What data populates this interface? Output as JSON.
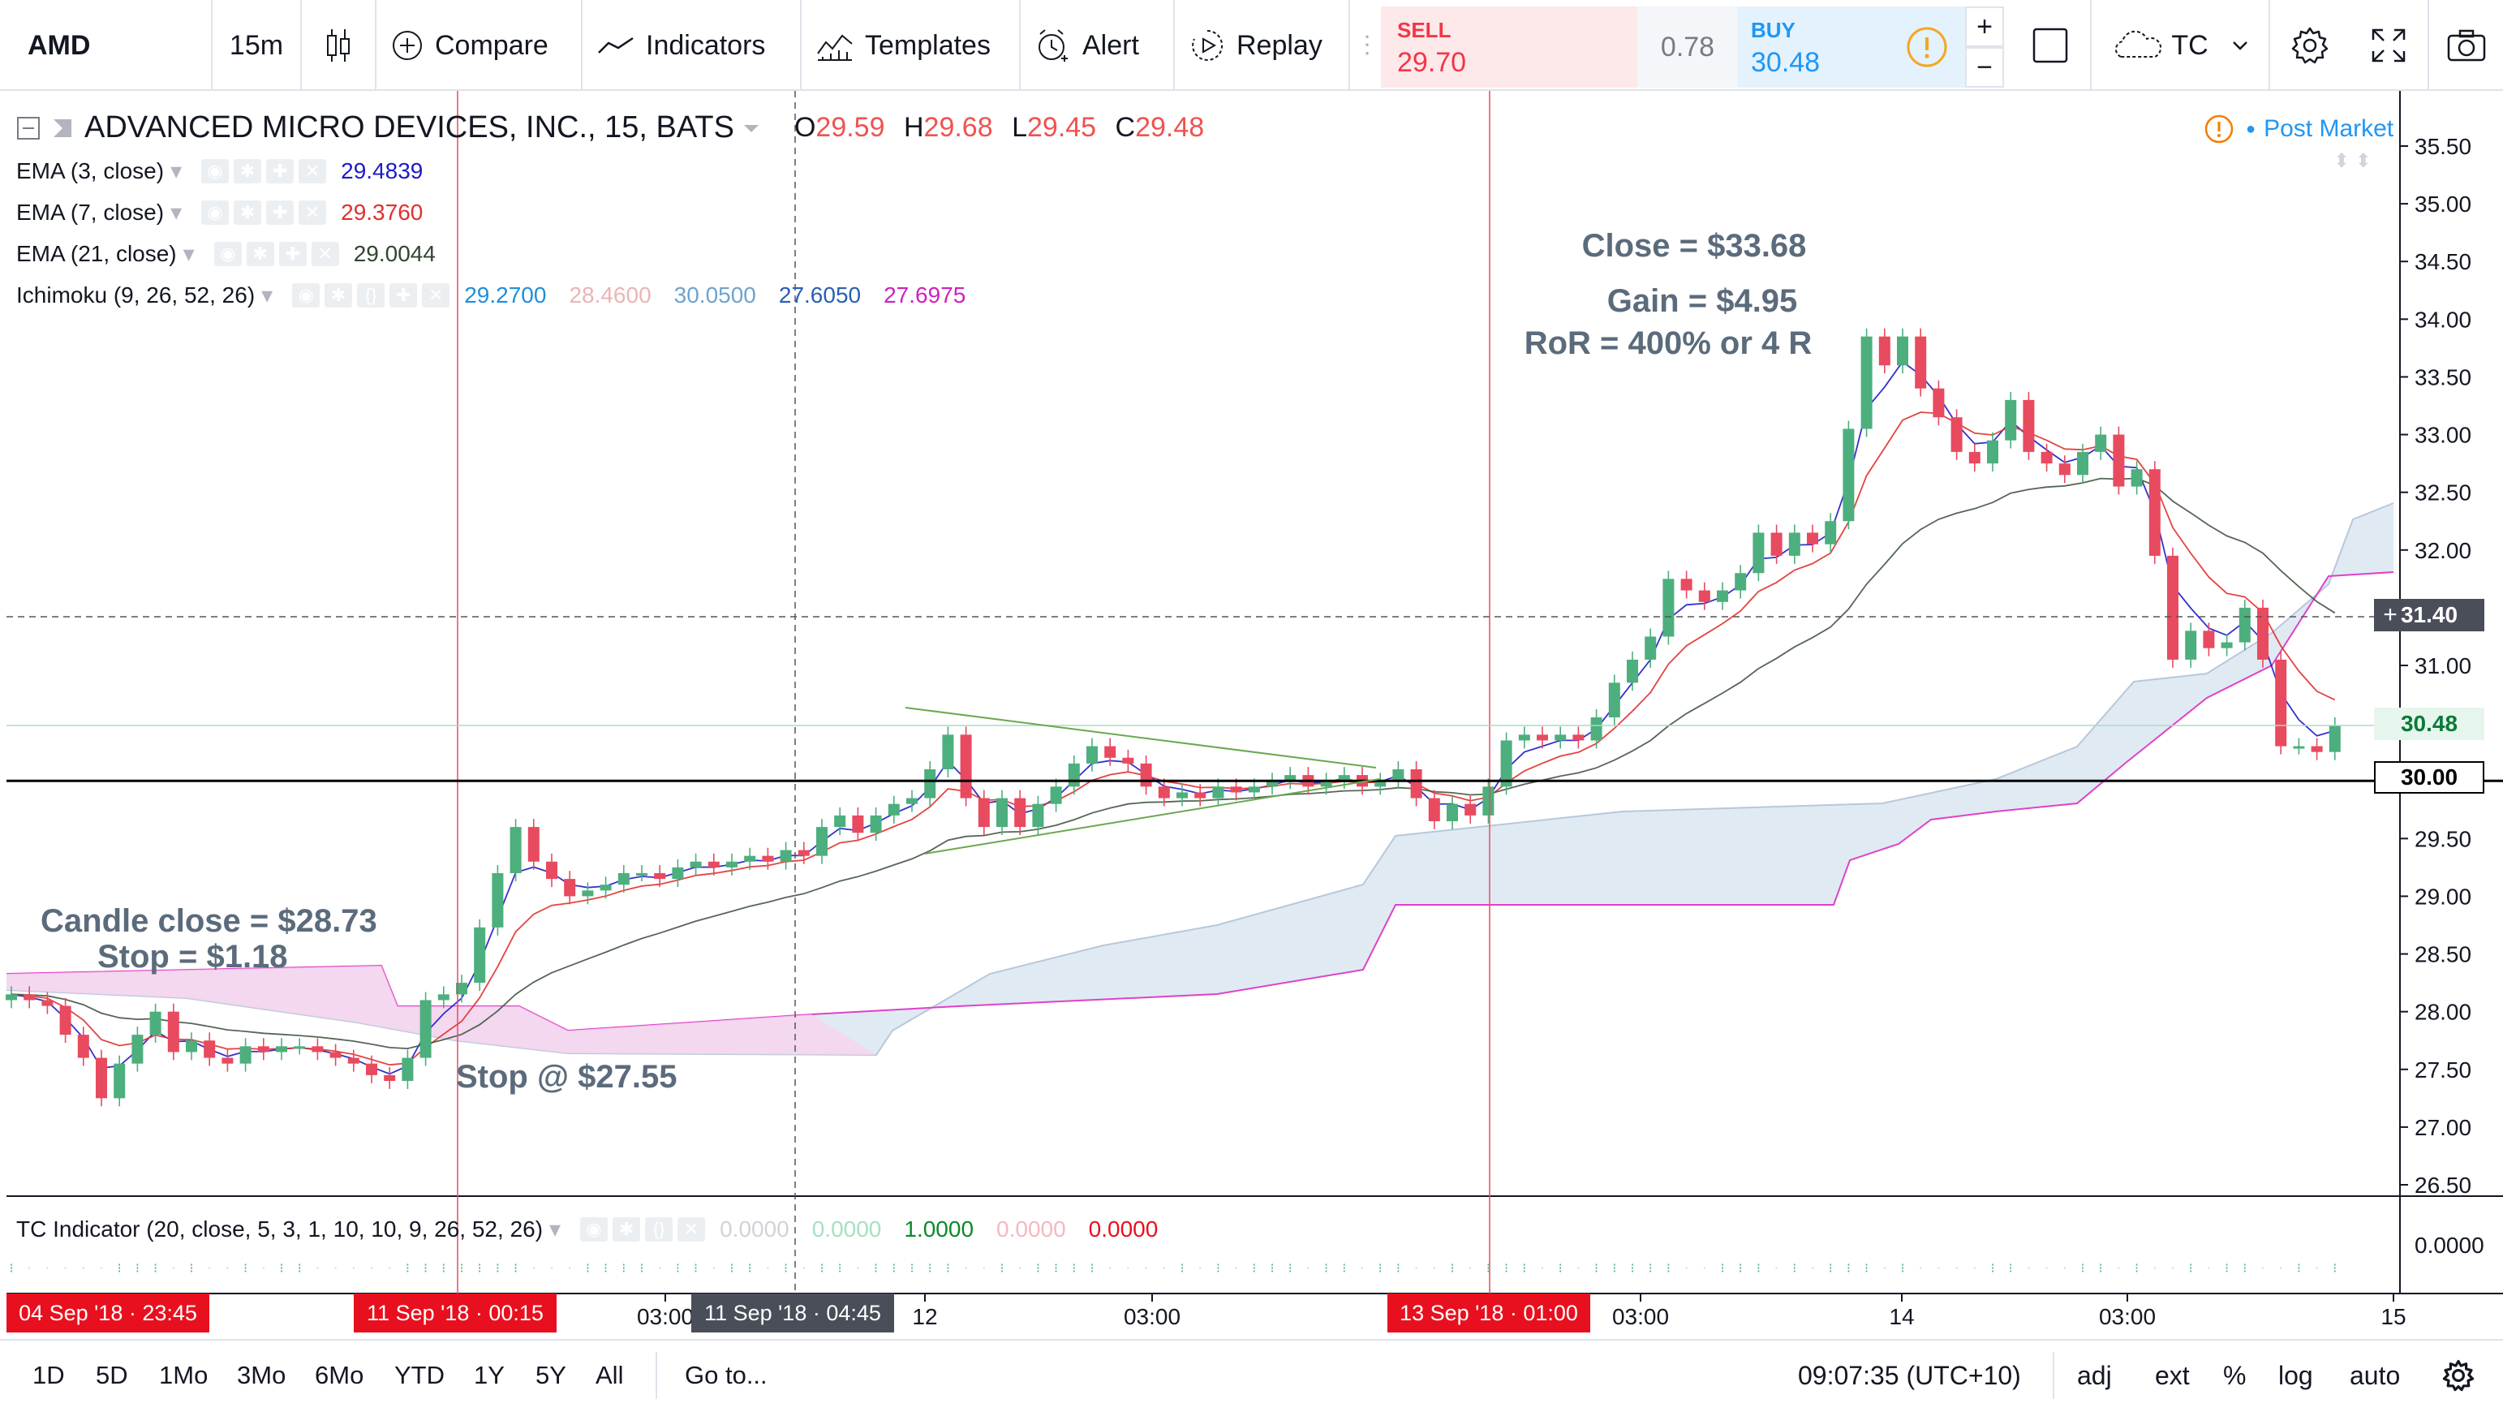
{
  "toolbar": {
    "symbol": "AMD",
    "interval": "15m",
    "compare": "Compare",
    "indicators": "Indicators",
    "templates": "Templates",
    "alert": "Alert",
    "replay": "Replay",
    "sell_label": "SELL",
    "sell_price": "29.70",
    "spread": "0.78",
    "buy_label": "BUY",
    "buy_price": "30.48",
    "plus": "+",
    "minus": "−",
    "cloud_label": "TC"
  },
  "legend": {
    "title": "ADVANCED MICRO DEVICES, INC., 15, BATS",
    "open_label": "O",
    "open": "29.59",
    "high_label": "H",
    "high": "29.68",
    "low_label": "L",
    "low": "29.45",
    "close_label": "C",
    "close": "29.48",
    "ema3_label": "EMA (3, close)",
    "ema3_value": "29.4839",
    "ema7_label": "EMA (7, close)",
    "ema7_value": "29.3760",
    "ema21_label": "EMA (21, close)",
    "ema21_value": "29.0044",
    "ichimoku_label": "Ichimoku (9, 26, 52, 26)",
    "ichimoku_values": [
      "29.2700",
      "28.4600",
      "30.0500",
      "27.6050",
      "27.6975"
    ],
    "post_market": "Post Market",
    "tc_label": "TC Indicator (20, close, 5, 3, 1, 10, 10, 9, 26, 52, 26)",
    "tc_values": [
      "0.0000",
      "0.0000",
      "1.0000",
      "0.0000",
      "0.0000"
    ]
  },
  "colors": {
    "up": "#4caf7d",
    "down": "#e84a5f",
    "ema3": "#1c1cc8",
    "ema7": "#e0302c",
    "ema21": "#445544",
    "cloud": "#d6e3ef",
    "cloud_lower": "#e040c8",
    "annotation": "#5b6b7b"
  },
  "annotations": {
    "candle_close": "Candle close = $28.73",
    "stop_size": "Stop = $1.18",
    "stop_at": "Stop @ $27.55",
    "close_at": "Close = $33.68",
    "gain": "Gain = $4.95",
    "ror": "RoR = 400% or 4 R"
  },
  "price_axis": {
    "ticks": [
      "35.50",
      "35.00",
      "34.50",
      "34.00",
      "33.50",
      "33.00",
      "32.50",
      "32.00",
      "31.50",
      "31.00",
      "30.50",
      "30.00",
      "29.50",
      "29.00",
      "28.50",
      "28.00",
      "27.50",
      "27.00",
      "26.50"
    ],
    "crosshair_price": "31.40",
    "last_price": "30.48",
    "line_price": "30.00",
    "tc_tick": "0.0000"
  },
  "time_axis": {
    "labels": [
      "03:00",
      "12",
      "03:00",
      "03:00",
      "14",
      "03:00",
      "15"
    ],
    "tags": [
      "04 Sep '18 · 23:45",
      "11 Sep '18 · 00:15",
      "11 Sep '18 · 04:45",
      "13 Sep '18 · 01:00"
    ]
  },
  "bottom": {
    "ranges": [
      "1D",
      "5D",
      "1Mo",
      "3Mo",
      "6Mo",
      "YTD",
      "1Y",
      "5Y",
      "All"
    ],
    "goto": "Go to...",
    "clock": "09:07:35 (UTC+10)",
    "adj": "adj",
    "ext": "ext",
    "pct": "%",
    "log": "log",
    "auto": "auto"
  },
  "chart_data": {
    "type": "candlestick",
    "title": "ADVANCED MICRO DEVICES, INC., 15, BATS",
    "ylim": [
      26.35,
      35.75
    ],
    "y_ticks": [
      26.5,
      27.0,
      27.5,
      28.0,
      28.5,
      29.0,
      29.5,
      30.0,
      30.5,
      31.0,
      31.5,
      32.0,
      32.5,
      33.0,
      33.5,
      34.0,
      34.5,
      35.0,
      35.5
    ],
    "candles_oc": [
      [
        28.1,
        28.15
      ],
      [
        28.15,
        28.1
      ],
      [
        28.1,
        28.05
      ],
      [
        28.05,
        27.8
      ],
      [
        27.8,
        27.6
      ],
      [
        27.6,
        27.25
      ],
      [
        27.25,
        27.55
      ],
      [
        27.55,
        27.8
      ],
      [
        27.8,
        28.0
      ],
      [
        28.0,
        27.65
      ],
      [
        27.65,
        27.75
      ],
      [
        27.75,
        27.6
      ],
      [
        27.6,
        27.55
      ],
      [
        27.55,
        27.7
      ],
      [
        27.7,
        27.65
      ],
      [
        27.65,
        27.7
      ],
      [
        27.7,
        27.7
      ],
      [
        27.7,
        27.65
      ],
      [
        27.65,
        27.6
      ],
      [
        27.6,
        27.55
      ],
      [
        27.55,
        27.45
      ],
      [
        27.45,
        27.4
      ],
      [
        27.4,
        27.6
      ],
      [
        27.6,
        28.1
      ],
      [
        28.1,
        28.15
      ],
      [
        28.15,
        28.25
      ],
      [
        28.25,
        28.73
      ],
      [
        28.73,
        29.2
      ],
      [
        29.2,
        29.6
      ],
      [
        29.6,
        29.3
      ],
      [
        29.3,
        29.15
      ],
      [
        29.15,
        29.0
      ],
      [
        29.0,
        29.05
      ],
      [
        29.05,
        29.1
      ],
      [
        29.1,
        29.2
      ],
      [
        29.2,
        29.2
      ],
      [
        29.2,
        29.15
      ],
      [
        29.15,
        29.25
      ],
      [
        29.25,
        29.3
      ],
      [
        29.3,
        29.25
      ],
      [
        29.25,
        29.3
      ],
      [
        29.3,
        29.35
      ],
      [
        29.35,
        29.3
      ],
      [
        29.3,
        29.4
      ],
      [
        29.4,
        29.35
      ],
      [
        29.35,
        29.6
      ],
      [
        29.6,
        29.7
      ],
      [
        29.7,
        29.55
      ],
      [
        29.55,
        29.7
      ],
      [
        29.7,
        29.8
      ],
      [
        29.8,
        29.85
      ],
      [
        29.85,
        30.1
      ],
      [
        30.1,
        30.4
      ],
      [
        30.4,
        29.85
      ],
      [
        29.85,
        29.6
      ],
      [
        29.6,
        29.85
      ],
      [
        29.85,
        29.6
      ],
      [
        29.6,
        29.8
      ],
      [
        29.8,
        29.95
      ],
      [
        29.95,
        30.15
      ],
      [
        30.15,
        30.3
      ],
      [
        30.3,
        30.2
      ],
      [
        30.2,
        30.15
      ],
      [
        30.15,
        29.95
      ],
      [
        29.95,
        29.85
      ],
      [
        29.85,
        29.9
      ],
      [
        29.9,
        29.85
      ],
      [
        29.85,
        29.95
      ],
      [
        29.95,
        29.9
      ],
      [
        29.9,
        29.95
      ],
      [
        29.95,
        30.0
      ],
      [
        30.0,
        30.05
      ],
      [
        30.05,
        29.95
      ],
      [
        29.95,
        30.0
      ],
      [
        30.0,
        30.05
      ],
      [
        30.05,
        29.95
      ],
      [
        29.95,
        30.0
      ],
      [
        30.0,
        30.1
      ],
      [
        30.1,
        29.85
      ],
      [
        29.85,
        29.65
      ],
      [
        29.65,
        29.8
      ],
      [
        29.8,
        29.7
      ],
      [
        29.7,
        29.95
      ],
      [
        29.95,
        30.35
      ],
      [
        30.35,
        30.4
      ],
      [
        30.4,
        30.35
      ],
      [
        30.35,
        30.4
      ],
      [
        30.4,
        30.35
      ],
      [
        30.35,
        30.55
      ],
      [
        30.55,
        30.85
      ],
      [
        30.85,
        31.05
      ],
      [
        31.05,
        31.25
      ],
      [
        31.25,
        31.75
      ],
      [
        31.75,
        31.65
      ],
      [
        31.65,
        31.55
      ],
      [
        31.55,
        31.65
      ],
      [
        31.65,
        31.8
      ],
      [
        31.8,
        32.15
      ],
      [
        32.15,
        31.95
      ],
      [
        31.95,
        32.15
      ],
      [
        32.15,
        32.05
      ],
      [
        32.05,
        32.25
      ],
      [
        32.25,
        33.05
      ],
      [
        33.05,
        33.85
      ],
      [
        33.85,
        33.6
      ],
      [
        33.6,
        33.85
      ],
      [
        33.85,
        33.4
      ],
      [
        33.4,
        33.15
      ],
      [
        33.15,
        32.85
      ],
      [
        32.85,
        32.75
      ],
      [
        32.75,
        32.95
      ],
      [
        32.95,
        33.3
      ],
      [
        33.3,
        32.85
      ],
      [
        32.85,
        32.75
      ],
      [
        32.75,
        32.65
      ],
      [
        32.65,
        32.85
      ],
      [
        32.85,
        33.0
      ],
      [
        33.0,
        32.55
      ],
      [
        32.55,
        32.7
      ],
      [
        32.7,
        31.95
      ],
      [
        31.95,
        31.05
      ],
      [
        31.05,
        31.3
      ],
      [
        31.3,
        31.15
      ],
      [
        31.15,
        31.2
      ],
      [
        31.2,
        31.5
      ],
      [
        31.5,
        31.05
      ],
      [
        31.05,
        30.3
      ],
      [
        30.3,
        30.3
      ],
      [
        30.3,
        30.25
      ],
      [
        30.25,
        30.48
      ]
    ]
  }
}
